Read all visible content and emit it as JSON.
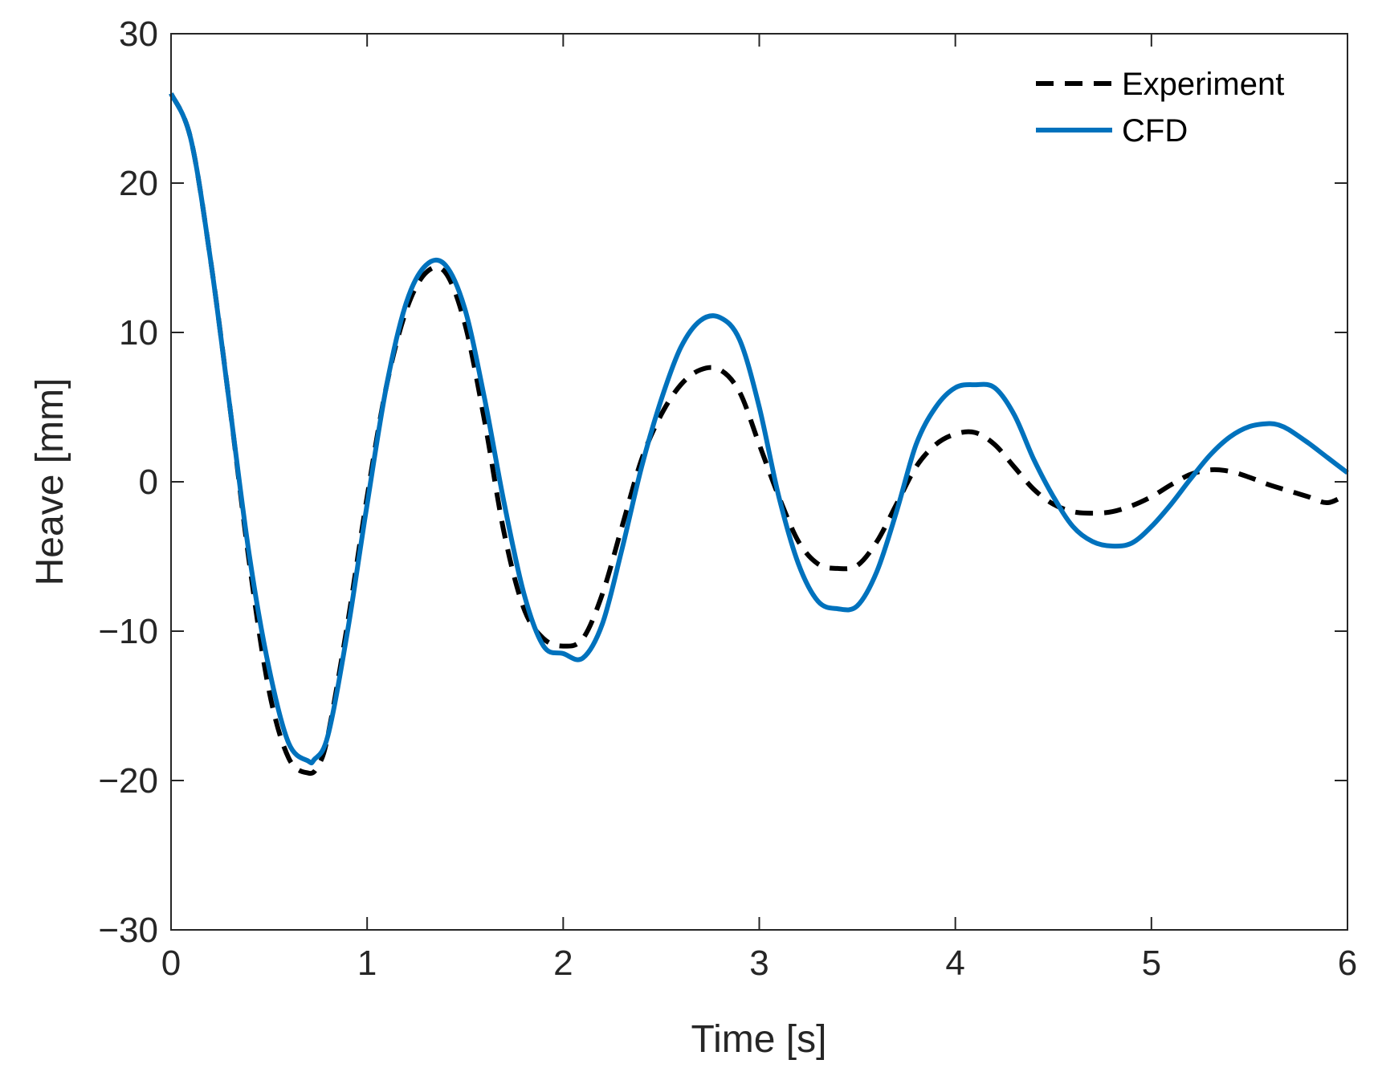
{
  "chart_data": {
    "type": "line",
    "title": "",
    "xlabel": "Time [s]",
    "ylabel": "Heave [mm]",
    "xlim": [
      0,
      6
    ],
    "ylim": [
      -30,
      30
    ],
    "xticks": [
      0,
      1,
      2,
      3,
      4,
      5,
      6
    ],
    "xtick_labels": [
      "0",
      "1",
      "2",
      "3",
      "4",
      "5",
      "6"
    ],
    "yticks": [
      -30,
      -20,
      -10,
      0,
      10,
      20,
      30
    ],
    "ytick_labels": [
      "−30",
      "−20",
      "−10",
      "0",
      "10",
      "20",
      "30"
    ],
    "grid": false,
    "legend_position": "top-right",
    "series": [
      {
        "name": "Experiment",
        "color": "#000000",
        "style": "dashed",
        "x": [
          0,
          0.1,
          0.2,
          0.3,
          0.4,
          0.5,
          0.6,
          0.7,
          0.75,
          0.8,
          0.9,
          1.0,
          1.1,
          1.2,
          1.3,
          1.4,
          1.5,
          1.6,
          1.7,
          1.8,
          1.9,
          2.0,
          2.1,
          2.2,
          2.3,
          2.4,
          2.5,
          2.6,
          2.7,
          2.8,
          2.9,
          3.0,
          3.1,
          3.2,
          3.3,
          3.4,
          3.5,
          3.6,
          3.7,
          3.8,
          3.9,
          4.0,
          4.1,
          4.2,
          4.3,
          4.4,
          4.5,
          4.6,
          4.7,
          4.8,
          4.9,
          5.0,
          5.1,
          5.2,
          5.3,
          5.4,
          5.5,
          5.6,
          5.7,
          5.8,
          5.9,
          6.0
        ],
        "y": [
          26,
          23,
          15,
          5,
          -5.5,
          -14,
          -18.5,
          -19.5,
          -19,
          -17,
          -9.5,
          -1,
          6.5,
          11.5,
          14,
          14,
          10.5,
          4,
          -3.5,
          -8.5,
          -10.5,
          -11,
          -10.5,
          -7.5,
          -3,
          1.5,
          4.5,
          6.5,
          7.5,
          7.5,
          6,
          2.5,
          -1,
          -4,
          -5.5,
          -5.8,
          -5.6,
          -4,
          -1.5,
          1,
          2.5,
          3.2,
          3.3,
          2.5,
          1,
          -0.5,
          -1.5,
          -2,
          -2.1,
          -2,
          -1.6,
          -1,
          -0.2,
          0.5,
          0.8,
          0.7,
          0.3,
          -0.2,
          -0.6,
          -1,
          -1.4,
          -0.8
        ]
      },
      {
        "name": "CFD",
        "color": "#0072BD",
        "style": "solid",
        "x": [
          0,
          0.1,
          0.2,
          0.3,
          0.4,
          0.5,
          0.6,
          0.7,
          0.73,
          0.8,
          0.9,
          1.0,
          1.1,
          1.2,
          1.3,
          1.4,
          1.5,
          1.6,
          1.7,
          1.8,
          1.9,
          2.0,
          2.1,
          2.2,
          2.3,
          2.4,
          2.5,
          2.6,
          2.7,
          2.8,
          2.9,
          3.0,
          3.1,
          3.2,
          3.3,
          3.4,
          3.5,
          3.6,
          3.7,
          3.8,
          3.9,
          4.0,
          4.1,
          4.2,
          4.3,
          4.4,
          4.5,
          4.6,
          4.7,
          4.8,
          4.9,
          5.0,
          5.1,
          5.2,
          5.3,
          5.4,
          5.5,
          5.6,
          5.65,
          5.7,
          5.8,
          5.9,
          6.0
        ],
        "y": [
          26,
          23,
          15,
          5,
          -5,
          -12.5,
          -17.5,
          -18.7,
          -18.6,
          -17,
          -10,
          -1.5,
          6.5,
          12,
          14.5,
          14.5,
          11.5,
          5.5,
          -1.5,
          -7.5,
          -11,
          -11.5,
          -11.8,
          -9.5,
          -4.5,
          1,
          5.5,
          9,
          10.8,
          11,
          9.5,
          5,
          -1,
          -5.5,
          -8,
          -8.5,
          -8.3,
          -6,
          -2,
          2.5,
          5,
          6.3,
          6.5,
          6.3,
          4.5,
          1.5,
          -1,
          -3,
          -4,
          -4.3,
          -4.1,
          -3,
          -1.5,
          0.2,
          1.8,
          3,
          3.7,
          3.9,
          3.8,
          3.5,
          2.6,
          1.6,
          0.6
        ]
      }
    ]
  }
}
